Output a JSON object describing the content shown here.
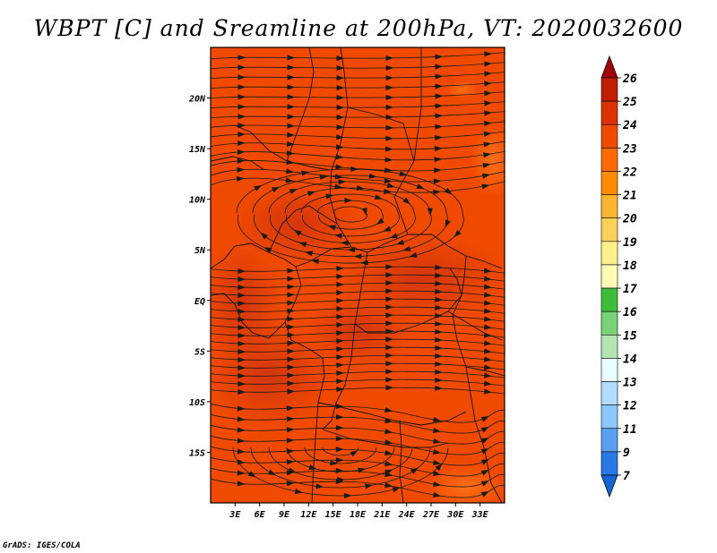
{
  "title": "WBPT [C] and Sreamline at 200hPa, VT: 2020032600",
  "credit": "GrADS: IGES/COLA",
  "map": {
    "lon_range": [
      0,
      36
    ],
    "lat_range": [
      -20,
      25
    ],
    "lon_ticks": [
      {
        "value": 3,
        "label": "3E"
      },
      {
        "value": 6,
        "label": "6E"
      },
      {
        "value": 9,
        "label": "9E"
      },
      {
        "value": 12,
        "label": "12E"
      },
      {
        "value": 15,
        "label": "15E"
      },
      {
        "value": 18,
        "label": "18E"
      },
      {
        "value": 21,
        "label": "21E"
      },
      {
        "value": 24,
        "label": "24E"
      },
      {
        "value": 27,
        "label": "27E"
      },
      {
        "value": 30,
        "label": "30E"
      },
      {
        "value": 33,
        "label": "33E"
      }
    ],
    "lat_ticks": [
      {
        "value": 20,
        "label": "20N"
      },
      {
        "value": 15,
        "label": "15N"
      },
      {
        "value": 10,
        "label": "10N"
      },
      {
        "value": 5,
        "label": "5N"
      },
      {
        "value": 0,
        "label": "EQ"
      },
      {
        "value": -5,
        "label": "5S"
      },
      {
        "value": -10,
        "label": "10S"
      },
      {
        "value": -15,
        "label": "15S"
      }
    ],
    "field_color": "#f04a00",
    "warm_color": "#d03210",
    "cool_color": "#ff6a14"
  },
  "colorbar": {
    "labels": [
      "26",
      "25",
      "24",
      "23",
      "22",
      "21",
      "20",
      "19",
      "18",
      "17",
      "16",
      "15",
      "14",
      "13",
      "12",
      "11",
      "9",
      "7"
    ],
    "colors": [
      "#a00000",
      "#c01e00",
      "#dc3200",
      "#f04a00",
      "#ff6a00",
      "#ff8c00",
      "#ffb432",
      "#ffd05a",
      "#fff08c",
      "#fffab4",
      "#3cbe3c",
      "#78d278",
      "#b4e6b4",
      "#e6ffff",
      "#b4dcff",
      "#8cc8ff",
      "#5aa0f0",
      "#2878e6",
      "#1464d2"
    ]
  }
}
